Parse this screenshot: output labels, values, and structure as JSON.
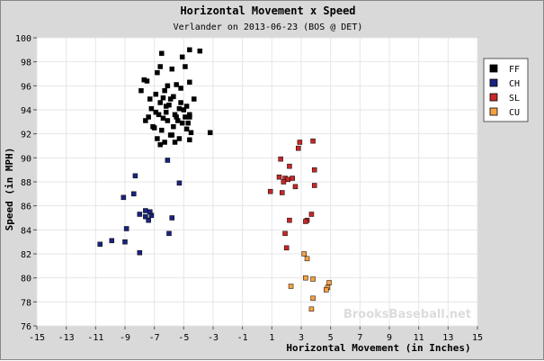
{
  "chart_data": {
    "type": "scatter",
    "title": "Horizontal Movement x Speed",
    "subtitle": "Verlander on 2013-06-23 (BOS @ DET)",
    "xlabel": "Horizontal Movement (in Inches)",
    "ylabel": "Speed (in MPH)",
    "xlim": [
      -15,
      15
    ],
    "ylim": [
      76,
      100
    ],
    "xticks": [
      "-15",
      "-13",
      "-11",
      "-9",
      "-7",
      "-5",
      "-3",
      "-1",
      "1",
      "3",
      "5",
      "7",
      "9",
      "11",
      "13",
      "15"
    ],
    "yticks": [
      "76",
      "78",
      "80",
      "82",
      "84",
      "86",
      "88",
      "90",
      "92",
      "94",
      "96",
      "98",
      "100"
    ],
    "grid": true,
    "legend_position": "right",
    "watermark": "BrooksBaseball.net",
    "series": [
      {
        "name": "FF",
        "color": "#000000",
        "points": [
          [
            -6.5,
            98.7
          ],
          [
            -5.8,
            97.4
          ],
          [
            -6.8,
            97.1
          ],
          [
            -5.5,
            96.1
          ],
          [
            -7.5,
            96.4
          ],
          [
            -6.3,
            95.6
          ],
          [
            -6.9,
            95.3
          ],
          [
            -5.2,
            95.8
          ],
          [
            -4.6,
            96.3
          ],
          [
            -7.9,
            95.6
          ],
          [
            -5.9,
            94.9
          ],
          [
            -6.6,
            94.6
          ],
          [
            -4.3,
            94.9
          ],
          [
            -7.2,
            94.1
          ],
          [
            -6.0,
            94.4
          ],
          [
            -5.3,
            94.1
          ],
          [
            -4.8,
            94.3
          ],
          [
            -6.7,
            93.6
          ],
          [
            -5.6,
            93.6
          ],
          [
            -7.4,
            93.4
          ],
          [
            -6.4,
            93.3
          ],
          [
            -4.9,
            93.4
          ],
          [
            -4.6,
            93.4
          ],
          [
            -6.1,
            93.1
          ],
          [
            -5.1,
            92.9
          ],
          [
            -7.1,
            92.6
          ],
          [
            -5.7,
            92.6
          ],
          [
            -6.5,
            92.3
          ],
          [
            -4.8,
            92.4
          ],
          [
            -4.5,
            92.1
          ],
          [
            -5.9,
            91.9
          ],
          [
            -6.8,
            91.6
          ],
          [
            -5.3,
            91.6
          ],
          [
            -4.6,
            91.5
          ],
          [
            -6.3,
            91.3
          ],
          [
            -5.6,
            91.3
          ],
          [
            -6.6,
            91.1
          ],
          [
            -3.2,
            92.1
          ],
          [
            -7.6,
            93.1
          ],
          [
            -6.2,
            93.8
          ],
          [
            -5.5,
            93.4
          ],
          [
            -5.0,
            94.0
          ],
          [
            -6.9,
            93.8
          ],
          [
            -7.3,
            94.9
          ],
          [
            -4.6,
            93.6
          ],
          [
            -5.7,
            95.1
          ],
          [
            -6.1,
            96.0
          ],
          [
            -4.9,
            97.6
          ],
          [
            -5.1,
            98.4
          ],
          [
            -4.6,
            99.0
          ],
          [
            -3.9,
            98.9
          ],
          [
            -6.6,
            97.6
          ],
          [
            -7.7,
            96.5
          ],
          [
            -5.2,
            94.6
          ],
          [
            -6.4,
            95.0
          ],
          [
            -4.7,
            92.9
          ],
          [
            -5.8,
            91.9
          ],
          [
            -7.0,
            92.5
          ],
          [
            -6.2,
            94.3
          ],
          [
            -5.4,
            93.1
          ]
        ]
      },
      {
        "name": "CH",
        "color": "#1a237e",
        "points": [
          [
            -8.3,
            88.5
          ],
          [
            -5.3,
            87.9
          ],
          [
            -8.4,
            87.0
          ],
          [
            -9.1,
            86.7
          ],
          [
            -7.6,
            85.6
          ],
          [
            -8.0,
            85.3
          ],
          [
            -7.2,
            85.2
          ],
          [
            -7.3,
            85.5
          ],
          [
            -7.6,
            85.1
          ],
          [
            -5.8,
            85.0
          ],
          [
            -7.4,
            84.8
          ],
          [
            -8.9,
            84.1
          ],
          [
            -6.0,
            83.7
          ],
          [
            -9.9,
            83.1
          ],
          [
            -9.0,
            83.0
          ],
          [
            -10.7,
            82.8
          ],
          [
            -8.0,
            82.1
          ],
          [
            -6.1,
            89.8
          ]
        ]
      },
      {
        "name": "SL",
        "color": "#c62828",
        "points": [
          [
            2.9,
            91.3
          ],
          [
            2.8,
            90.8
          ],
          [
            3.8,
            91.4
          ],
          [
            1.6,
            89.9
          ],
          [
            2.2,
            89.3
          ],
          [
            3.9,
            89.0
          ],
          [
            1.5,
            88.4
          ],
          [
            1.9,
            88.3
          ],
          [
            2.1,
            88.2
          ],
          [
            2.4,
            88.3
          ],
          [
            1.8,
            88.0
          ],
          [
            2.6,
            87.6
          ],
          [
            3.9,
            87.7
          ],
          [
            0.9,
            87.2
          ],
          [
            1.7,
            87.1
          ],
          [
            3.7,
            85.3
          ],
          [
            3.4,
            84.8
          ],
          [
            2.2,
            84.8
          ],
          [
            3.3,
            84.7
          ],
          [
            1.9,
            83.7
          ],
          [
            2.0,
            82.5
          ]
        ]
      },
      {
        "name": "CU",
        "color": "#f5a142",
        "points": [
          [
            3.2,
            82.0
          ],
          [
            3.4,
            81.6
          ],
          [
            3.3,
            80.0
          ],
          [
            3.8,
            79.9
          ],
          [
            4.9,
            79.6
          ],
          [
            4.8,
            79.2
          ],
          [
            2.3,
            79.3
          ],
          [
            4.7,
            79.0
          ],
          [
            3.8,
            78.3
          ],
          [
            3.7,
            77.4
          ]
        ]
      }
    ]
  }
}
